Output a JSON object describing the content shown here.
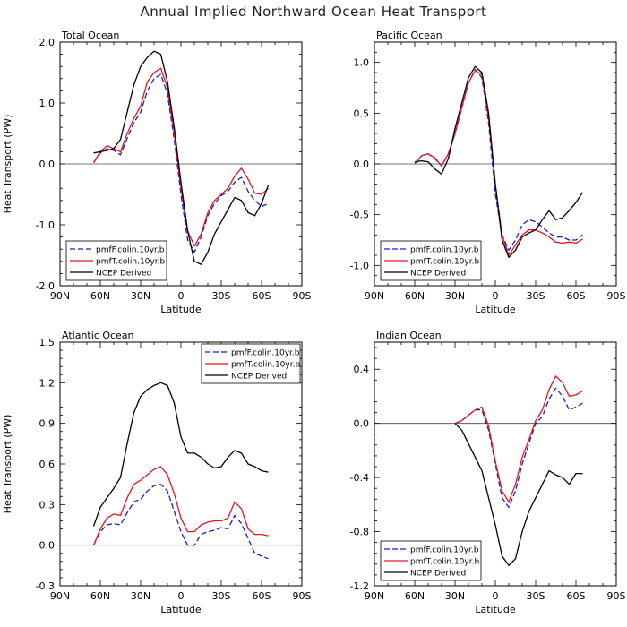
{
  "title": "Annual Implied Northward Ocean Heat Transport",
  "colors": {
    "model_f": "#1a1ad6",
    "model_t": "#e8141e",
    "ncep": "#000000"
  },
  "chart_data": [
    {
      "type": "line",
      "panel": "total",
      "title": "Total Ocean",
      "xlabel": "Latitude",
      "ylabel": "Heat Transport (PW)",
      "xticks": [
        "90N",
        "60N",
        "30N",
        "0",
        "30S",
        "60S",
        "90S"
      ],
      "yticks": [
        -2.0,
        -1.0,
        0.0,
        1.0,
        2.0
      ],
      "ytick_labels": [
        "-2.0",
        "-1.0",
        "0.0",
        "1.0",
        "2.0"
      ],
      "xlim": [
        -90,
        90
      ],
      "ylim": [
        -2.0,
        2.0
      ],
      "legend_position": "bottom-left",
      "series": [
        {
          "name": "pmfF.colin.10yr.b",
          "style": "dashed",
          "color": "#1a1ad6",
          "x": [
            -65,
            -60,
            -55,
            -50,
            -45,
            -40,
            -35,
            -30,
            -25,
            -20,
            -15,
            -10,
            -5,
            0,
            5,
            10,
            15,
            20,
            25,
            30,
            35,
            40,
            45,
            50,
            55,
            60,
            65
          ],
          "y": [
            0.02,
            0.18,
            0.25,
            0.22,
            0.15,
            0.42,
            0.68,
            0.85,
            1.2,
            1.4,
            1.47,
            1.15,
            0.4,
            -0.5,
            -1.25,
            -1.45,
            -1.2,
            -0.85,
            -0.65,
            -0.52,
            -0.45,
            -0.3,
            -0.22,
            -0.45,
            -0.6,
            -0.7,
            -0.65
          ]
        },
        {
          "name": "pmfT.colin.10yr.b",
          "style": "solid",
          "color": "#e8141e",
          "x": [
            -65,
            -60,
            -55,
            -50,
            -45,
            -40,
            -35,
            -30,
            -25,
            -20,
            -15,
            -10,
            -5,
            0,
            5,
            10,
            15,
            20,
            25,
            30,
            35,
            40,
            45,
            50,
            55,
            60,
            65
          ],
          "y": [
            0.02,
            0.2,
            0.3,
            0.25,
            0.2,
            0.5,
            0.75,
            0.95,
            1.35,
            1.5,
            1.57,
            1.25,
            0.5,
            -0.4,
            -1.1,
            -1.35,
            -1.15,
            -0.8,
            -0.6,
            -0.5,
            -0.4,
            -0.2,
            -0.07,
            -0.25,
            -0.48,
            -0.5,
            -0.4
          ]
        },
        {
          "name": "NCEP Derived",
          "style": "solid",
          "color": "#000000",
          "x": [
            -65,
            -60,
            -55,
            -50,
            -45,
            -40,
            -35,
            -30,
            -25,
            -20,
            -15,
            -10,
            -5,
            0,
            5,
            10,
            15,
            20,
            25,
            30,
            35,
            40,
            45,
            50,
            55,
            60,
            65
          ],
          "y": [
            0.18,
            0.2,
            0.22,
            0.25,
            0.4,
            0.85,
            1.3,
            1.6,
            1.75,
            1.85,
            1.8,
            1.35,
            0.6,
            -0.3,
            -1.1,
            -1.6,
            -1.65,
            -1.45,
            -1.15,
            -0.95,
            -0.75,
            -0.55,
            -0.6,
            -0.8,
            -0.85,
            -0.65,
            -0.35
          ]
        }
      ]
    },
    {
      "type": "line",
      "panel": "pacific",
      "title": "Pacific Ocean",
      "xlabel": "Latitude",
      "ylabel": "",
      "xticks": [
        "90N",
        "60N",
        "30N",
        "0",
        "30S",
        "60S",
        "90S"
      ],
      "yticks": [
        -1.0,
        -0.5,
        0.0,
        0.5,
        1.0
      ],
      "ytick_labels": [
        "-1.0",
        "-0.5",
        "0.0",
        "0.5",
        "1.0"
      ],
      "xlim": [
        -90,
        90
      ],
      "ylim": [
        -1.2,
        1.2
      ],
      "legend_position": "bottom-left",
      "series": [
        {
          "name": "pmfF.colin.10yr.b",
          "style": "dashed",
          "color": "#1a1ad6",
          "x": [
            -60,
            -55,
            -50,
            -45,
            -40,
            -35,
            -30,
            -25,
            -20,
            -15,
            -10,
            -5,
            0,
            5,
            10,
            15,
            20,
            25,
            30,
            35,
            40,
            45,
            50,
            55,
            60,
            65
          ],
          "y": [
            0.0,
            0.08,
            0.1,
            0.05,
            -0.02,
            0.1,
            0.3,
            0.55,
            0.8,
            0.93,
            0.85,
            0.4,
            -0.3,
            -0.7,
            -0.85,
            -0.75,
            -0.6,
            -0.55,
            -0.57,
            -0.62,
            -0.68,
            -0.72,
            -0.72,
            -0.75,
            -0.75,
            -0.7
          ]
        },
        {
          "name": "pmfT.colin.10yr.b",
          "style": "solid",
          "color": "#e8141e",
          "x": [
            -60,
            -55,
            -50,
            -45,
            -40,
            -35,
            -30,
            -25,
            -20,
            -15,
            -10,
            -5,
            0,
            5,
            10,
            15,
            20,
            25,
            30,
            35,
            40,
            45,
            50,
            55,
            60,
            65
          ],
          "y": [
            0.0,
            0.08,
            0.1,
            0.06,
            -0.02,
            0.1,
            0.3,
            0.55,
            0.8,
            0.92,
            0.88,
            0.45,
            -0.2,
            -0.7,
            -0.9,
            -0.8,
            -0.7,
            -0.65,
            -0.65,
            -0.68,
            -0.72,
            -0.77,
            -0.78,
            -0.77,
            -0.78,
            -0.74
          ]
        },
        {
          "name": "NCEP Derived",
          "style": "solid",
          "color": "#000000",
          "x": [
            -60,
            -55,
            -50,
            -45,
            -40,
            -35,
            -30,
            -25,
            -20,
            -15,
            -10,
            -5,
            0,
            5,
            10,
            15,
            20,
            25,
            30,
            35,
            40,
            45,
            50,
            55,
            60,
            65
          ],
          "y": [
            0.02,
            0.03,
            0.02,
            -0.05,
            -0.1,
            0.05,
            0.35,
            0.6,
            0.85,
            0.96,
            0.9,
            0.5,
            -0.2,
            -0.75,
            -0.92,
            -0.85,
            -0.72,
            -0.68,
            -0.65,
            -0.55,
            -0.46,
            -0.55,
            -0.53,
            -0.46,
            -0.38,
            -0.28
          ]
        }
      ]
    },
    {
      "type": "line",
      "panel": "atlantic",
      "title": "Atlantic Ocean",
      "xlabel": "Latitude",
      "ylabel": "Heat Transport (PW)",
      "xticks": [
        "90N",
        "60N",
        "30N",
        "0",
        "30S",
        "60S",
        "90S"
      ],
      "yticks": [
        -0.3,
        0.0,
        0.3,
        0.6,
        0.9,
        1.2,
        1.5
      ],
      "ytick_labels": [
        "-0.3",
        "0.0",
        "0.3",
        "0.6",
        "0.9",
        "1.2",
        "1.5"
      ],
      "xlim": [
        -90,
        90
      ],
      "ylim": [
        -0.3,
        1.5
      ],
      "legend_position": "top-right",
      "series": [
        {
          "name": "pmfF.colin.10yr.b",
          "style": "dashed",
          "color": "#1a1ad6",
          "x": [
            -65,
            -60,
            -55,
            -50,
            -45,
            -40,
            -35,
            -30,
            -25,
            -20,
            -15,
            -10,
            -5,
            0,
            5,
            10,
            15,
            20,
            25,
            30,
            35,
            40,
            45,
            50,
            55,
            60,
            65
          ],
          "y": [
            0.0,
            0.1,
            0.15,
            0.16,
            0.15,
            0.24,
            0.32,
            0.34,
            0.4,
            0.44,
            0.45,
            0.4,
            0.25,
            0.1,
            0.0,
            0.0,
            0.08,
            0.1,
            0.11,
            0.13,
            0.12,
            0.22,
            0.16,
            0.05,
            -0.06,
            -0.08,
            -0.1
          ]
        },
        {
          "name": "pmfT.colin.10yr.b",
          "style": "solid",
          "color": "#e8141e",
          "x": [
            -65,
            -60,
            -55,
            -50,
            -45,
            -40,
            -35,
            -30,
            -25,
            -20,
            -15,
            -10,
            -5,
            0,
            5,
            10,
            15,
            20,
            25,
            30,
            35,
            40,
            45,
            50,
            55,
            60,
            65
          ],
          "y": [
            0.0,
            0.12,
            0.2,
            0.23,
            0.22,
            0.35,
            0.45,
            0.48,
            0.52,
            0.56,
            0.58,
            0.52,
            0.38,
            0.2,
            0.1,
            0.1,
            0.15,
            0.17,
            0.18,
            0.18,
            0.2,
            0.32,
            0.27,
            0.12,
            0.08,
            0.08,
            0.07
          ]
        },
        {
          "name": "NCEP Derived",
          "style": "solid",
          "color": "#000000",
          "x": [
            -65,
            -60,
            -55,
            -50,
            -45,
            -40,
            -35,
            -30,
            -25,
            -20,
            -15,
            -10,
            -5,
            0,
            5,
            10,
            15,
            20,
            25,
            30,
            35,
            40,
            45,
            50,
            55,
            60,
            65
          ],
          "y": [
            0.14,
            0.28,
            0.35,
            0.42,
            0.5,
            0.75,
            0.98,
            1.1,
            1.15,
            1.18,
            1.2,
            1.18,
            1.05,
            0.8,
            0.68,
            0.68,
            0.65,
            0.6,
            0.57,
            0.58,
            0.65,
            0.7,
            0.68,
            0.6,
            0.58,
            0.55,
            0.54
          ]
        }
      ]
    },
    {
      "type": "line",
      "panel": "indian",
      "title": "Indian Ocean",
      "xlabel": "Latitude",
      "ylabel": "",
      "xticks": [
        "90N",
        "60N",
        "30N",
        "0",
        "30S",
        "60S",
        "90S"
      ],
      "yticks": [
        -1.2,
        -0.8,
        -0.4,
        0.0,
        0.4
      ],
      "ytick_labels": [
        "-1.2",
        "-0.8",
        "-0.4",
        "0.0",
        "0.4"
      ],
      "xlim": [
        -90,
        90
      ],
      "ylim": [
        -1.2,
        0.6
      ],
      "legend_position": "bottom-left",
      "series": [
        {
          "name": "pmfF.colin.10yr.b",
          "style": "dashed",
          "color": "#1a1ad6",
          "x": [
            -30,
            -25,
            -20,
            -15,
            -10,
            -5,
            0,
            5,
            10,
            15,
            20,
            25,
            30,
            35,
            40,
            45,
            50,
            55,
            60,
            65
          ],
          "y": [
            0.0,
            0.02,
            0.06,
            0.1,
            0.1,
            -0.05,
            -0.3,
            -0.55,
            -0.62,
            -0.5,
            -0.3,
            -0.15,
            0.0,
            0.05,
            0.18,
            0.26,
            0.2,
            0.1,
            0.12,
            0.15
          ]
        },
        {
          "name": "pmfT.colin.10yr.b",
          "style": "solid",
          "color": "#e8141e",
          "x": [
            -30,
            -25,
            -20,
            -15,
            -10,
            -5,
            0,
            5,
            10,
            15,
            20,
            25,
            30,
            35,
            40,
            45,
            50,
            55,
            60,
            65
          ],
          "y": [
            0.0,
            0.02,
            0.06,
            0.1,
            0.12,
            -0.02,
            -0.28,
            -0.5,
            -0.58,
            -0.45,
            -0.25,
            -0.12,
            0.02,
            0.1,
            0.25,
            0.35,
            0.3,
            0.2,
            0.21,
            0.24
          ]
        },
        {
          "name": "NCEP Derived",
          "style": "solid",
          "color": "#000000",
          "x": [
            -30,
            -25,
            -20,
            -15,
            -10,
            -5,
            0,
            5,
            10,
            15,
            20,
            25,
            30,
            35,
            40,
            45,
            50,
            55,
            60,
            65
          ],
          "y": [
            0.0,
            -0.05,
            -0.15,
            -0.25,
            -0.35,
            -0.55,
            -0.75,
            -0.98,
            -1.05,
            -1.0,
            -0.8,
            -0.65,
            -0.55,
            -0.45,
            -0.35,
            -0.38,
            -0.4,
            -0.45,
            -0.37,
            -0.37
          ]
        }
      ]
    }
  ]
}
